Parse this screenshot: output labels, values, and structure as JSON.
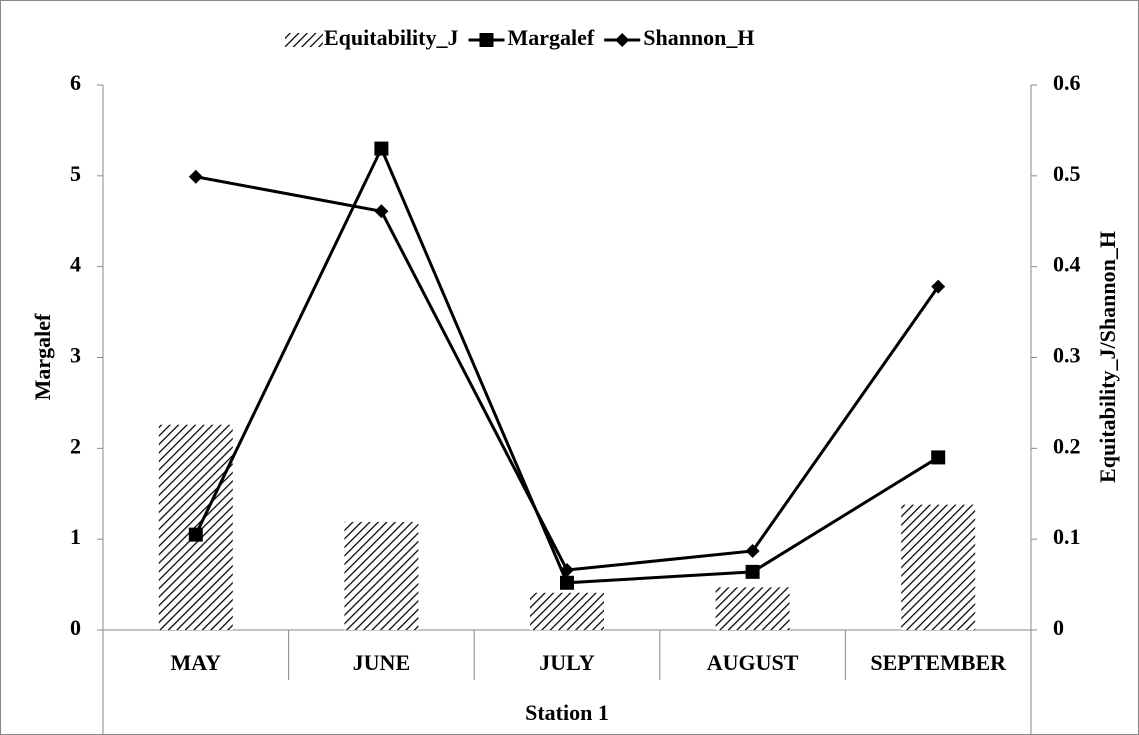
{
  "chart_data": {
    "type": "combo",
    "xlabel": "Station 1",
    "ylabel": "Margalef",
    "y2label": "Equitability_J/Shannon_H",
    "categories": [
      "MAY",
      "JUNE",
      "JULY",
      "AUGUST",
      "SEPTEMBER"
    ],
    "ylim": [
      0,
      6
    ],
    "yticks": [
      0,
      1,
      2,
      3,
      4,
      5,
      6
    ],
    "y2lim": [
      0,
      0.6
    ],
    "y2ticks": [
      0,
      0.1,
      0.2,
      0.3,
      0.4,
      0.5,
      0.6
    ],
    "legend": "top",
    "series": [
      {
        "name": "Equitability_J",
        "type": "bar",
        "axis": "y2",
        "color": "#000000",
        "values": [
          0.226,
          0.119,
          0.041,
          0.047,
          0.138
        ]
      },
      {
        "name": "Margalef",
        "type": "line",
        "marker": "square",
        "axis": "y",
        "color": "#000000",
        "values": [
          1.05,
          5.3,
          0.52,
          0.64,
          1.9
        ]
      },
      {
        "name": "Shannon_H",
        "type": "line",
        "marker": "diamond",
        "axis": "y2",
        "color": "#000000",
        "values": [
          0.499,
          0.461,
          0.066,
          0.087,
          0.378
        ]
      }
    ]
  }
}
